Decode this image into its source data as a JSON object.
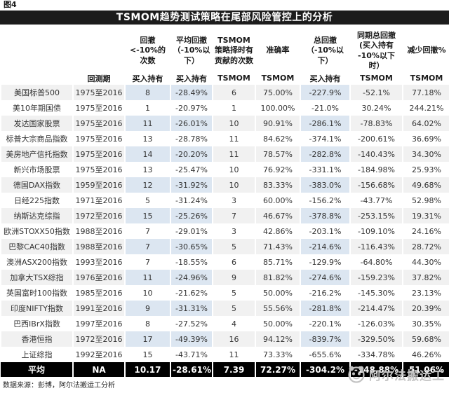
{
  "figure_label": "图4",
  "title": "TSMOM趋势测试策略在尾部风险管控上的分析",
  "chart_data": {
    "type": "table",
    "title": "TSMOM趋势测试策略在尾部风险管控上的分析",
    "column_groups": [
      {
        "text": "",
        "style": "black"
      },
      {
        "text": "",
        "style": "black"
      },
      {
        "text": "回撤<-10%的次数",
        "style": "black"
      },
      {
        "text": "平均回撤（-10%以下）",
        "style": "black"
      },
      {
        "text": "TSMOM策略择时有贡献的次数",
        "style": "red"
      },
      {
        "text": "准确率",
        "style": "red"
      },
      {
        "text": "总回撤（-10%以下）",
        "style": "black"
      },
      {
        "text": "同期总回撤 (买入持有 -10%以下时）",
        "style": "red"
      },
      {
        "text": "减少回撤%",
        "style": "red"
      }
    ],
    "sub_headers": [
      {
        "text": "",
        "style": "black"
      },
      {
        "text": "回测期",
        "style": "black"
      },
      {
        "text": "买入持有",
        "style": "black"
      },
      {
        "text": "买入持有",
        "style": "black"
      },
      {
        "text": "TSMOM",
        "style": "red"
      },
      {
        "text": "TSMOM",
        "style": "red"
      },
      {
        "text": "买入持有",
        "style": "black"
      },
      {
        "text": "TSMOM",
        "style": "red"
      },
      {
        "text": "TSMOM",
        "style": "red"
      }
    ],
    "rows": [
      [
        "美国标普500",
        "1975至2016",
        "8",
        "-28.49%",
        "6",
        "75.00%",
        "-227.9%",
        "-52.1%",
        "77.18%"
      ],
      [
        "美10年期国债",
        "1975至2016",
        "1",
        "-20.97%",
        "1",
        "100.00%",
        "-21.0%",
        "30.24%",
        "244.21%"
      ],
      [
        "发达国家股票",
        "1975至2016",
        "11",
        "-26.01%",
        "10",
        "90.91%",
        "-286.1%",
        "-78.83%",
        "64.02%"
      ],
      [
        "标普大宗商品指数",
        "1975至2016",
        "13",
        "-28.78%",
        "11",
        "84.62%",
        "-374.1%",
        "-200.61%",
        "36.69%"
      ],
      [
        "美房地产信托指数",
        "1975至2016",
        "14",
        "-20.20%",
        "11",
        "78.57%",
        "-282.8%",
        "-140.43%",
        "34.30%"
      ],
      [
        "新兴市场股票",
        "1975至2016",
        "13",
        "-25.47%",
        "10",
        "76.92%",
        "-331.1%",
        "-184.98%",
        "25.93%"
      ],
      [
        "德国DAX指数",
        "1959至2016",
        "12",
        "-31.92%",
        "10",
        "83.33%",
        "-383.0%",
        "-156.68%",
        "49.68%"
      ],
      [
        "日经225指数",
        "1971至2016",
        "5",
        "-31.24%",
        "3",
        "60.00%",
        "-156.2%",
        "-43.77%",
        "52.98%"
      ],
      [
        "纳斯达克综指",
        "1972至2016",
        "15",
        "-25.26%",
        "7",
        "46.67%",
        "-378.8%",
        "-253.15%",
        "19.31%"
      ],
      [
        "欧洲STOXX50指数",
        "1988至2016",
        "7",
        "-29.01%",
        "3",
        "42.86%",
        "-203.1%",
        "-109.10%",
        "24.16%"
      ],
      [
        "巴黎CAC40指数",
        "1988至2016",
        "7",
        "-30.65%",
        "5",
        "71.43%",
        "-214.6%",
        "-116.43%",
        "28.72%"
      ],
      [
        "澳洲ASX200指数",
        "1993至2016",
        "7",
        "-18.55%",
        "6",
        "85.71%",
        "-129.9%",
        "-64.80%",
        "44.30%"
      ],
      [
        "加拿大TSX综指",
        "1976至2016",
        "11",
        "-24.96%",
        "9",
        "81.82%",
        "-274.6%",
        "-159.23%",
        "37.82%"
      ],
      [
        "英国富时100指数",
        "1985至2016",
        "10",
        "-21.62%",
        "5",
        "50.00%",
        "-216.2%",
        "-145.30%",
        "23.13%"
      ],
      [
        "印度NIFTY指数",
        "1991至2016",
        "9",
        "-31.31%",
        "5",
        "55.56%",
        "-281.8%",
        "-214.47%",
        "20.39%"
      ],
      [
        "巴西IBrX指数",
        "1997至2016",
        "8",
        "-27.52%",
        "4",
        "50.00%",
        "-220.1%",
        "-126.03%",
        "30.35%"
      ],
      [
        "香港恒指",
        "1972至2016",
        "17",
        "-49.39%",
        "16",
        "94.12%",
        "-839.7%",
        "-329.50%",
        "59.68%"
      ],
      [
        "上证综指",
        "1992至2016",
        "15",
        "-43.71%",
        "11",
        "73.33%",
        "-655.6%",
        "-334.78%",
        "46.26%"
      ]
    ],
    "average_row": [
      "平均",
      "NA",
      "10.17",
      "-28.61%",
      "7.39",
      "72.27%",
      "-304.2%",
      "-148.88%",
      "51.06%"
    ],
    "highlighted_buy_hold_columns": [
      2,
      3,
      6
    ],
    "shading": "odd rows light gray; buy-and-hold value cells in shaded rows light blue"
  },
  "footer": {
    "source": "数据来源：彭博，阿尔法搬运工分析"
  },
  "watermark": {
    "label": "阿尔法搬运工",
    "icon": "panda-logo"
  },
  "colors": {
    "accent_red": "#eb0000",
    "row_shade": "#f1f1f1",
    "cell_blue": "#dce6f1",
    "header_bar": "#1c1c1c",
    "average_bar": "#000000",
    "watermark_gray": "#c3c3c3"
  }
}
